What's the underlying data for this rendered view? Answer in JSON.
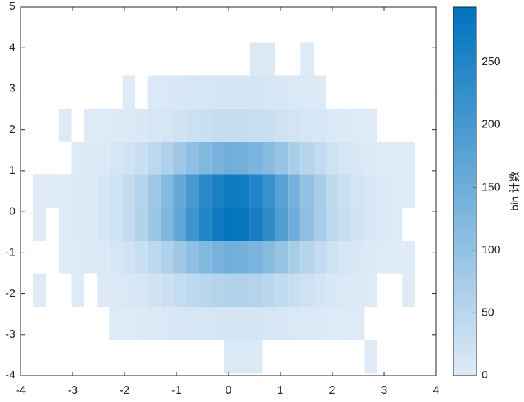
{
  "chart_data": {
    "type": "histogram2",
    "xbins": [
      -3.76,
      -3.51,
      -3.27,
      -3.02,
      -2.78,
      -2.53,
      -2.29,
      -2.04,
      -1.8,
      -1.55,
      -1.31,
      -1.06,
      -0.82,
      -0.57,
      -0.33,
      -0.08,
      0.16,
      0.41,
      0.66,
      0.9,
      1.15,
      1.39,
      1.64,
      1.88,
      2.13,
      2.37,
      2.62,
      2.86,
      3.11,
      3.35,
      3.6
    ],
    "ybins": [
      -3.94,
      -3.13,
      -2.32,
      -1.51,
      -0.71,
      0.1,
      0.91,
      1.71,
      2.52,
      3.32,
      4.13
    ],
    "counts": [
      [
        0,
        0,
        0,
        0,
        0,
        0,
        0,
        0,
        0,
        0,
        0,
        0,
        0,
        0,
        0,
        6,
        6,
        6,
        0,
        0,
        0,
        0,
        0,
        0,
        0,
        0,
        1,
        0,
        0,
        0
      ],
      [
        0,
        0,
        0,
        0,
        0,
        0,
        1,
        2,
        3,
        5,
        7,
        9,
        11,
        13,
        14,
        15,
        15,
        14,
        12,
        10,
        8,
        6,
        4,
        2,
        2,
        1,
        0,
        0,
        0,
        0
      ],
      [
        1,
        0,
        0,
        1,
        0,
        3,
        5,
        8,
        12,
        19,
        26,
        35,
        44,
        52,
        57,
        60,
        59,
        55,
        48,
        39,
        31,
        22,
        16,
        10,
        6,
        3,
        2,
        0,
        0,
        1
      ],
      [
        0,
        0,
        1,
        2,
        3,
        6,
        11,
        19,
        30,
        45,
        63,
        84,
        106,
        125,
        138,
        145,
        142,
        132,
        116,
        94,
        74,
        54,
        38,
        23,
        15,
        8,
        4,
        2,
        1,
        1
      ],
      [
        1,
        0,
        2,
        3,
        6,
        12,
        22,
        38,
        59,
        90,
        126,
        168,
        212,
        249,
        276,
        290,
        284,
        264,
        232,
        189,
        148,
        107,
        75,
        46,
        29,
        17,
        9,
        5,
        2,
        0
      ],
      [
        1,
        1,
        1,
        3,
        6,
        12,
        21,
        36,
        56,
        85,
        120,
        160,
        200,
        237,
        261,
        275,
        270,
        250,
        220,
        179,
        140,
        102,
        72,
        44,
        28,
        16,
        9,
        4,
        2,
        1
      ],
      [
        0,
        0,
        0,
        2,
        3,
        6,
        11,
        19,
        30,
        45,
        63,
        84,
        106,
        125,
        138,
        145,
        142,
        132,
        116,
        94,
        74,
        54,
        38,
        23,
        15,
        8,
        4,
        2,
        1,
        1
      ],
      [
        0,
        0,
        1,
        0,
        1,
        2,
        3,
        5,
        7,
        11,
        15,
        20,
        26,
        30,
        33,
        35,
        34,
        32,
        28,
        23,
        18,
        13,
        9,
        6,
        4,
        2,
        1,
        0,
        0,
        0
      ],
      [
        0,
        0,
        0,
        0,
        0,
        0,
        0,
        2,
        0,
        5,
        7,
        9,
        11,
        13,
        14,
        15,
        15,
        14,
        12,
        10,
        8,
        6,
        4,
        0,
        0,
        0,
        0,
        0,
        0,
        0
      ],
      [
        0,
        0,
        0,
        0,
        0,
        0,
        0,
        0,
        0,
        0,
        0,
        0,
        0,
        0,
        0,
        0,
        0,
        3,
        3,
        0,
        0,
        2,
        0,
        0,
        0,
        0,
        0,
        0,
        0,
        0
      ]
    ],
    "xlim": [
      -4,
      4
    ],
    "xticks": [
      -4,
      -3,
      -2,
      -1,
      0,
      1,
      2,
      3,
      4
    ],
    "ylim": [
      -4,
      5
    ],
    "yticks": [
      -4,
      -3,
      -2,
      -1,
      0,
      1,
      2,
      3,
      4,
      5
    ],
    "clim": [
      0,
      294
    ],
    "cticks": [
      0,
      50,
      100,
      150,
      200,
      250
    ],
    "colorbar_label": "bin 计数",
    "colormap": [
      "#dfebf7",
      "#0072bd"
    ]
  }
}
